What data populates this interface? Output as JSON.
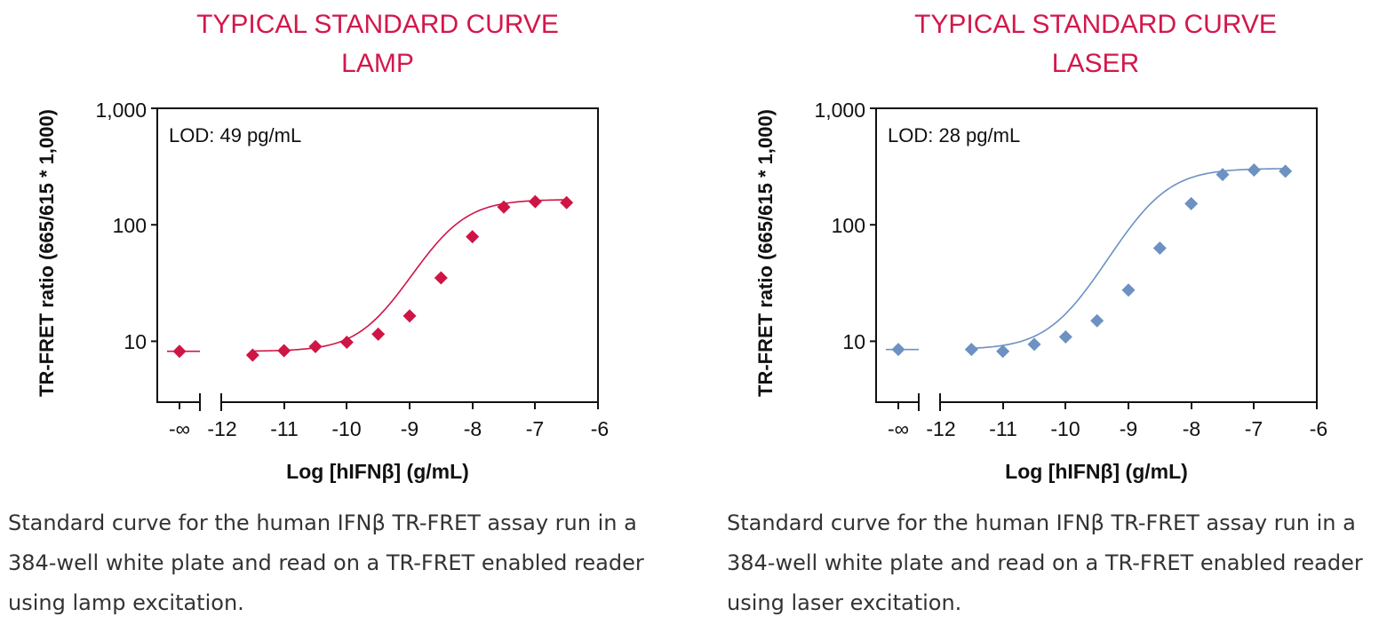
{
  "colors": {
    "title": "#d2184b",
    "axis": "#111111",
    "text": "#111111",
    "caption": "#333333"
  },
  "chart_data": [
    {
      "type": "scatter",
      "title": "TYPICAL STANDARD CURVE",
      "subtitle": "LAMP",
      "xlabel": "Log [hIFNβ] (g/mL)",
      "ylabel": "TR-FRET ratio (665/615 * 1,000)",
      "yscale": "log",
      "ylim": [
        3,
        1000
      ],
      "xlim": [
        -12,
        -6
      ],
      "y_ticks": [
        10,
        100,
        1000
      ],
      "y_tick_labels": [
        "10",
        "100",
        "1,000"
      ],
      "x_ticks": [
        -12,
        -11,
        -10,
        -9,
        -8,
        -7,
        -6
      ],
      "x_tick_labels": [
        "-12",
        "-11",
        "-10",
        "-9",
        "-8",
        "-7",
        "-6"
      ],
      "neg_inf_label": "-∞",
      "annotation": "LOD: 49 pg/mL",
      "marker": "diamond",
      "series_color": "#cf1545",
      "neg_inf_value": 8.2,
      "x": [
        -11.5,
        -11,
        -10.5,
        -10,
        -9.5,
        -9,
        -8.5,
        -8,
        -7.5,
        -7,
        -6.5
      ],
      "y": [
        7.6,
        8.3,
        9.0,
        9.8,
        11.5,
        16.5,
        35,
        79,
        142,
        158,
        155
      ],
      "fit": {
        "bottom": 8.2,
        "top": 165,
        "ec50_log": -8.4,
        "hill": 1.15
      },
      "caption": "Standard curve for the human IFNβ TR-FRET assay run in a 384-well white plate and read on a TR-FRET enabled reader using lamp excitation."
    },
    {
      "type": "scatter",
      "title": "TYPICAL STANDARD CURVE",
      "subtitle": "LASER",
      "xlabel": "Log [hIFNβ] (g/mL)",
      "ylabel": "TR-FRET ratio (665/615 * 1,000)",
      "yscale": "log",
      "ylim": [
        3,
        1000
      ],
      "xlim": [
        -12,
        -6
      ],
      "y_ticks": [
        10,
        100,
        1000
      ],
      "y_tick_labels": [
        "10",
        "100",
        "1,000"
      ],
      "x_ticks": [
        -12,
        -11,
        -10,
        -9,
        -8,
        -7,
        -6
      ],
      "x_tick_labels": [
        "-12",
        "-11",
        "-10",
        "-9",
        "-8",
        "-7",
        "-6"
      ],
      "neg_inf_label": "-∞",
      "annotation": "LOD: 28 pg/mL",
      "marker": "diamond",
      "series_color": "#6c91c2",
      "neg_inf_value": 8.5,
      "x": [
        -11.5,
        -11,
        -10.5,
        -10,
        -9.5,
        -9,
        -8.5,
        -8,
        -7.5,
        -7,
        -6.5
      ],
      "y": [
        8.5,
        8.2,
        9.4,
        10.9,
        15,
        27.5,
        63,
        152,
        270,
        295,
        288
      ],
      "fit": {
        "bottom": 8.5,
        "top": 305,
        "ec50_log": -8.62,
        "hill": 1.1
      },
      "caption": "Standard curve for the human IFNβ TR-FRET assay run in a 384-well white plate and read on a TR-FRET enabled reader using laser excitation."
    }
  ]
}
